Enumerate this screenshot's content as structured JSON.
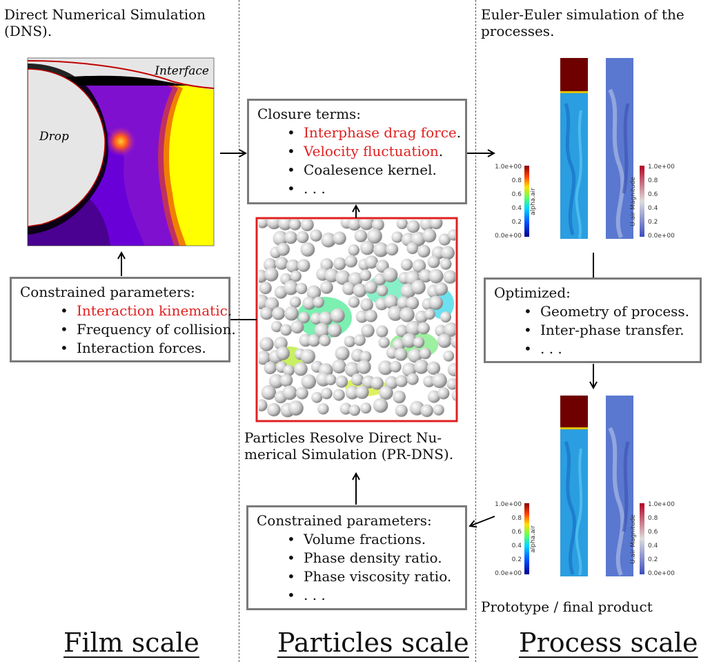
{
  "film": {
    "caption": "Direct Numerical Simulation (DNS).",
    "image_labels": {
      "interface": "Interface",
      "drop": "Drop"
    },
    "box": {
      "title": "Constrained parameters:",
      "items": [
        {
          "text": "Interaction kinematic",
          "suffix": ".",
          "highlight": true
        },
        {
          "text": "Frequency of collision.",
          "suffix": "",
          "highlight": false
        },
        {
          "text": "Interaction forces.",
          "suffix": "",
          "highlight": false
        }
      ]
    },
    "scale_label": "Film scale"
  },
  "particles": {
    "closure_box": {
      "title": "Closure terms:",
      "items": [
        {
          "text": "Interphase drag force",
          "suffix": ".",
          "highlight": true
        },
        {
          "text": "Velocity fluctuation",
          "suffix": ".",
          "highlight": true
        },
        {
          "text": "Coalesence kernel.",
          "suffix": "",
          "highlight": false
        },
        {
          "text": ". . .",
          "suffix": "",
          "highlight": false
        }
      ]
    },
    "caption_line1": "Particles Resolve Direct Nu-",
    "caption_line2": "merical Simulation (PR-DNS).",
    "constrained_box": {
      "title": "Constrained parameters:",
      "items": [
        {
          "text": "Volume fractions.",
          "suffix": "",
          "highlight": false
        },
        {
          "text": "Phase density ratio.",
          "suffix": "",
          "highlight": false
        },
        {
          "text": "Phase viscosity ratio.",
          "suffix": "",
          "highlight": false
        },
        {
          "text": ". . .",
          "suffix": "",
          "highlight": false
        }
      ]
    },
    "scale_label": "Particles scale"
  },
  "process": {
    "caption_line1": "Euler-Euler simulation of the",
    "caption_line2": "processes.",
    "colorbar_left": {
      "title": "alpha.air",
      "ticks": [
        "1.0e+00",
        "0.8",
        "0.6",
        "0.4",
        "0.2",
        "0.0e+00"
      ]
    },
    "colorbar_right": {
      "title": "U.air Magnitude",
      "ticks": [
        "1.0e+00",
        "0.8",
        "0.6",
        "0.4",
        "0.2",
        "0.0e+00"
      ]
    },
    "optimized_box": {
      "title": "Optimized:",
      "items": [
        {
          "text": "Geometry of process.",
          "suffix": "",
          "highlight": false
        },
        {
          "text": "Inter-phase transfer.",
          "suffix": "",
          "highlight": false
        },
        {
          "text": ". . .",
          "suffix": "",
          "highlight": false
        }
      ]
    },
    "final_caption": "Prototype / final product",
    "scale_label": "Process scale"
  },
  "colors": {
    "highlight": "#e02020",
    "box_border": "#7a7a7a",
    "pr_dns_border": "#e02020"
  }
}
